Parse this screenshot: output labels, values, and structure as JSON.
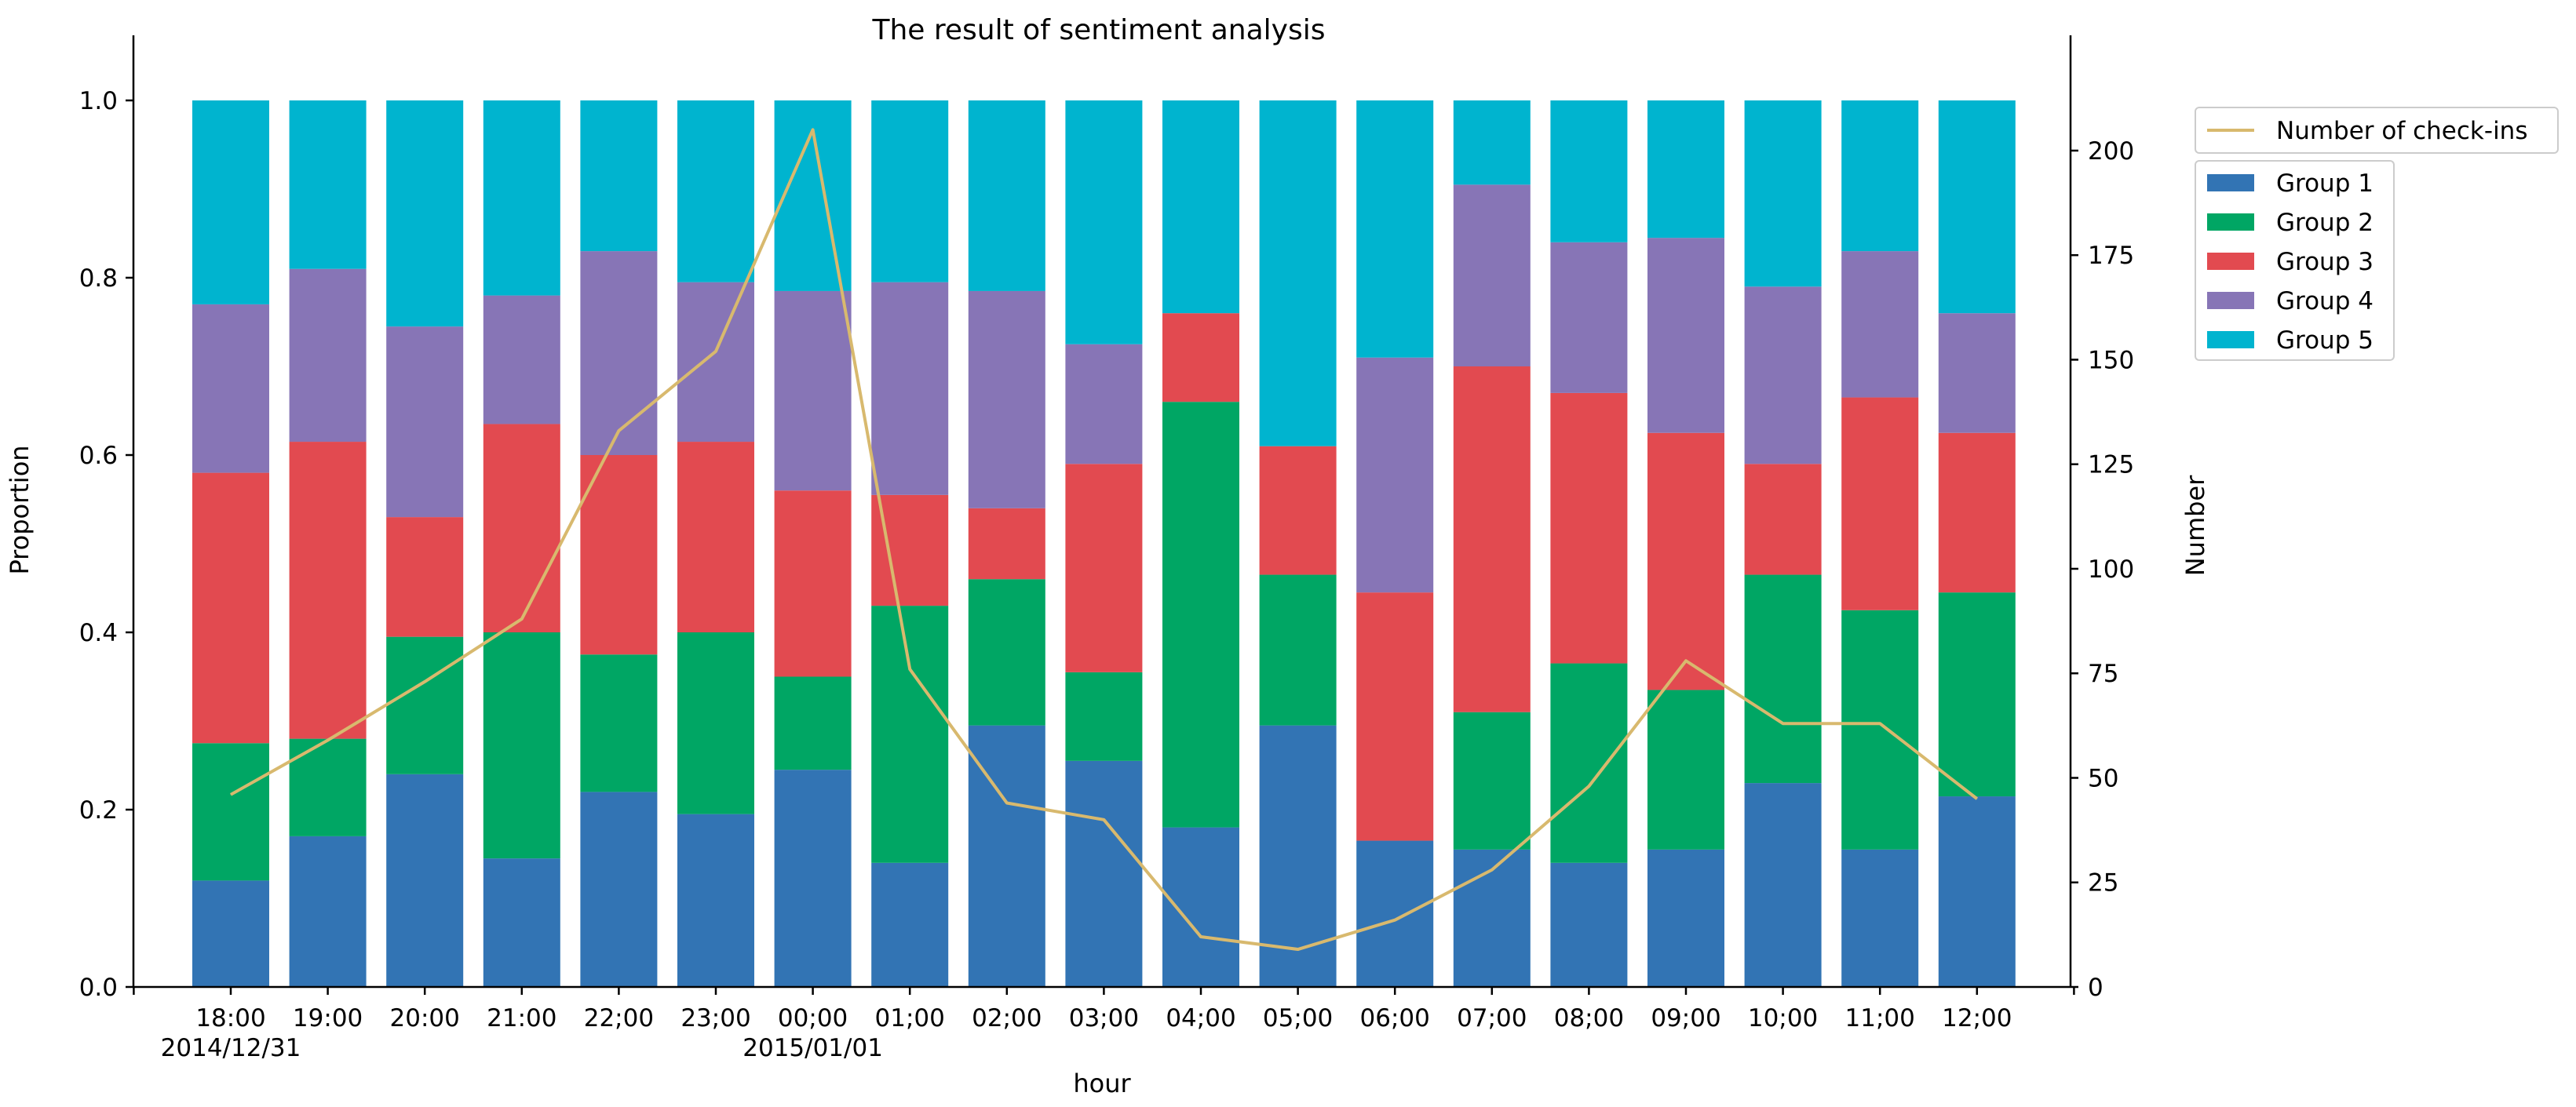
{
  "chart_data": {
    "type": "bar",
    "title": "The result of sentiment analysis",
    "xlabel": "hour",
    "ylabel": "Proportion",
    "y2label": "Number",
    "ylim": [
      0,
      1
    ],
    "y2lim": [
      0,
      212
    ],
    "yticks": [
      "0.0",
      "0.2",
      "0.4",
      "0.6",
      "0.8",
      "1.0"
    ],
    "y2ticks": [
      "0",
      "25",
      "50",
      "75",
      "100",
      "125",
      "150",
      "175",
      "200"
    ],
    "categories": [
      "18:00",
      "19:00",
      "20:00",
      "21:00",
      "22;00",
      "23;00",
      "00;00",
      "01;00",
      "02;00",
      "03;00",
      "04;00",
      "05;00",
      "06;00",
      "07;00",
      "08;00",
      "09;00",
      "10;00",
      "11;00",
      "12;00"
    ],
    "date_labels": [
      {
        "index": 0,
        "text": "2014/12/31"
      },
      {
        "index": 6,
        "text": "2015/01/01"
      }
    ],
    "stacked": true,
    "series": [
      {
        "name": "Group 1",
        "color": "#3274b4",
        "values": [
          0.12,
          0.17,
          0.24,
          0.145,
          0.22,
          0.195,
          0.245,
          0.14,
          0.295,
          0.255,
          0.18,
          0.295,
          0.165,
          0.155,
          0.14,
          0.155,
          0.23,
          0.155,
          0.215
        ]
      },
      {
        "name": "Group 2",
        "color": "#00a664",
        "values": [
          0.155,
          0.11,
          0.155,
          0.255,
          0.155,
          0.205,
          0.105,
          0.29,
          0.165,
          0.1,
          0.48,
          0.17,
          0.0,
          0.155,
          0.225,
          0.18,
          0.235,
          0.27,
          0.23
        ]
      },
      {
        "name": "Group 3",
        "color": "#e24a50",
        "values": [
          0.305,
          0.335,
          0.135,
          0.235,
          0.225,
          0.215,
          0.21,
          0.125,
          0.08,
          0.235,
          0.1,
          0.145,
          0.28,
          0.39,
          0.305,
          0.29,
          0.125,
          0.24,
          0.18
        ]
      },
      {
        "name": "Group 4",
        "color": "#8775b6",
        "values": [
          0.19,
          0.195,
          0.215,
          0.145,
          0.23,
          0.18,
          0.225,
          0.24,
          0.245,
          0.135,
          0.0,
          0.0,
          0.265,
          0.205,
          0.17,
          0.22,
          0.2,
          0.165,
          0.135
        ]
      },
      {
        "name": "Group 5",
        "color": "#00b4cf",
        "values": [
          0.23,
          0.19,
          0.255,
          0.22,
          0.17,
          0.205,
          0.215,
          0.205,
          0.215,
          0.275,
          0.24,
          0.39,
          0.29,
          0.095,
          0.16,
          0.155,
          0.21,
          0.17,
          0.24
        ]
      }
    ],
    "line": {
      "name": "Number of check-ins",
      "color": "#d8b96e",
      "axis": "right",
      "values": [
        46,
        59,
        73,
        88,
        133,
        152,
        205,
        76,
        44,
        40,
        12,
        9,
        16,
        28,
        48,
        78,
        63,
        63,
        45
      ]
    },
    "legend_placement": "outside-right",
    "grid": false
  }
}
